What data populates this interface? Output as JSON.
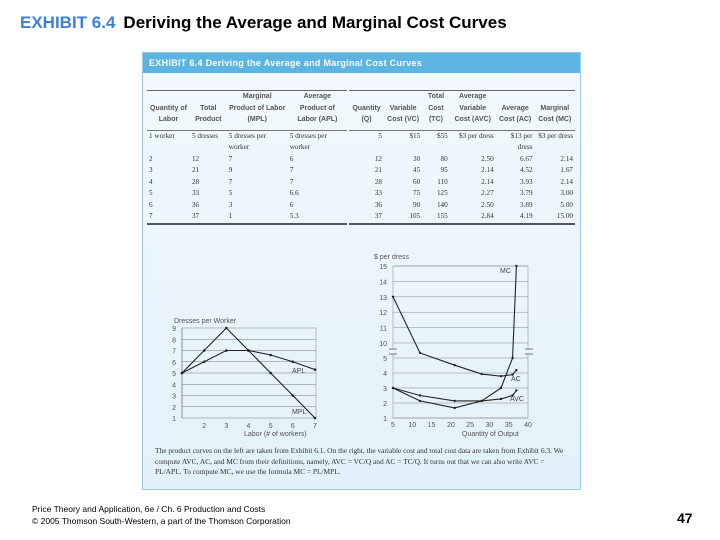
{
  "slide": {
    "title_prefix": "EXHIBIT 6.4",
    "title": "Deriving the Average and Marginal Cost Curves",
    "footer_line1": "Price Theory and Application, 6e / Ch. 6 Production and Costs",
    "footer_line2": "© 2005 Thomson South-Western, a part of the Thomson Corporation",
    "page_number": "47"
  },
  "exhibit": {
    "header": "EXHIBIT 6.4  Deriving the Average and Marginal Cost Curves",
    "accent_color": "#5cb4e0",
    "production_table": {
      "headers": [
        "Quantity of Labor",
        "Total Product",
        "Marginal Product of Labor (MPL)",
        "Average Product of Labor (APL)"
      ],
      "rows": [
        [
          "1 worker",
          "5 dresses",
          "5 dresses per worker",
          "5 dresses per worker"
        ],
        [
          "2",
          "12",
          "7",
          "6"
        ],
        [
          "3",
          "21",
          "9",
          "7"
        ],
        [
          "4",
          "28",
          "7",
          "7"
        ],
        [
          "5",
          "33",
          "5",
          "6.6"
        ],
        [
          "6",
          "36",
          "3",
          "6"
        ],
        [
          "7",
          "37",
          "1",
          "5.3"
        ]
      ]
    },
    "cost_table": {
      "headers": [
        "Quantity (Q)",
        "Variable Cost (VC)",
        "Total Cost (TC)",
        "Average Variable Cost (AVC)",
        "Average Cost (AC)",
        "Marginal Cost (MC)"
      ],
      "rows": [
        [
          "5",
          "$15",
          "$55",
          "$3 per dress",
          "$13 per dress",
          "$3 per dress"
        ],
        [
          "12",
          "30",
          "80",
          "2.50",
          "6.67",
          "2.14"
        ],
        [
          "21",
          "45",
          "95",
          "2.14",
          "4.52",
          "1.67"
        ],
        [
          "28",
          "60",
          "110",
          "2.14",
          "3.93",
          "2.14"
        ],
        [
          "33",
          "75",
          "125",
          "2.27",
          "3.79",
          "3.00"
        ],
        [
          "36",
          "90",
          "140",
          "2.50",
          "3.89",
          "5.00"
        ],
        [
          "37",
          "105",
          "155",
          "2.84",
          "4.19",
          "15.00"
        ]
      ]
    },
    "caption": "The product curves on the left are taken from Exhibit 6.1. On the right, the variable cost and total cost data are taken from Exhibit 6.3. We compute AVC, AC, and MC from their definitions, namely, AVC = VC/Q and AC = TC/Q. It turns out that we can also write AVC = PL/APL. To compute MC, we use the formula MC = PL/MPL."
  },
  "chart_data": [
    {
      "type": "line",
      "ylabel": "Dresses per Worker",
      "xlabel": "Labor (# of workers)",
      "x": [
        1,
        2,
        3,
        4,
        5,
        6,
        7
      ],
      "xticks": [
        "2",
        "3",
        "4",
        "5",
        "6",
        "7"
      ],
      "yticks": [
        "1",
        "2",
        "3",
        "4",
        "5",
        "6",
        "7",
        "8",
        "9"
      ],
      "xlim": [
        1,
        7
      ],
      "ylim": [
        1,
        9
      ],
      "grid": true,
      "series": [
        {
          "name": "APL",
          "values": [
            5,
            6,
            7,
            7,
            6.6,
            6,
            5.3
          ]
        },
        {
          "name": "MPL",
          "values": [
            5,
            7,
            9,
            7,
            5,
            3,
            1
          ]
        }
      ]
    },
    {
      "type": "line",
      "ylabel": "$ per dress",
      "xlabel": "Quantity of Output",
      "xticks": [
        "5",
        "10",
        "15",
        "20",
        "25",
        "30",
        "35",
        "40"
      ],
      "yticks": [
        "1",
        "2",
        "3",
        "4",
        "5",
        "10",
        "11",
        "12",
        "13",
        "14",
        "15"
      ],
      "xlim": [
        5,
        40
      ],
      "ylim": [
        1,
        15
      ],
      "axis_break": [
        5,
        10
      ],
      "grid": true,
      "series": [
        {
          "name": "MC",
          "x": [
            5,
            12,
            21,
            28,
            33,
            36,
            37
          ],
          "values": [
            3,
            2.14,
            1.67,
            2.14,
            3.0,
            5.0,
            15.0
          ]
        },
        {
          "name": "AC",
          "x": [
            5,
            12,
            21,
            28,
            33,
            36,
            37
          ],
          "values": [
            13,
            6.67,
            4.52,
            3.93,
            3.79,
            3.89,
            4.19
          ]
        },
        {
          "name": "AVC",
          "x": [
            5,
            12,
            21,
            28,
            33,
            36,
            37
          ],
          "values": [
            3,
            2.5,
            2.14,
            2.14,
            2.27,
            2.5,
            2.84
          ]
        }
      ]
    }
  ]
}
